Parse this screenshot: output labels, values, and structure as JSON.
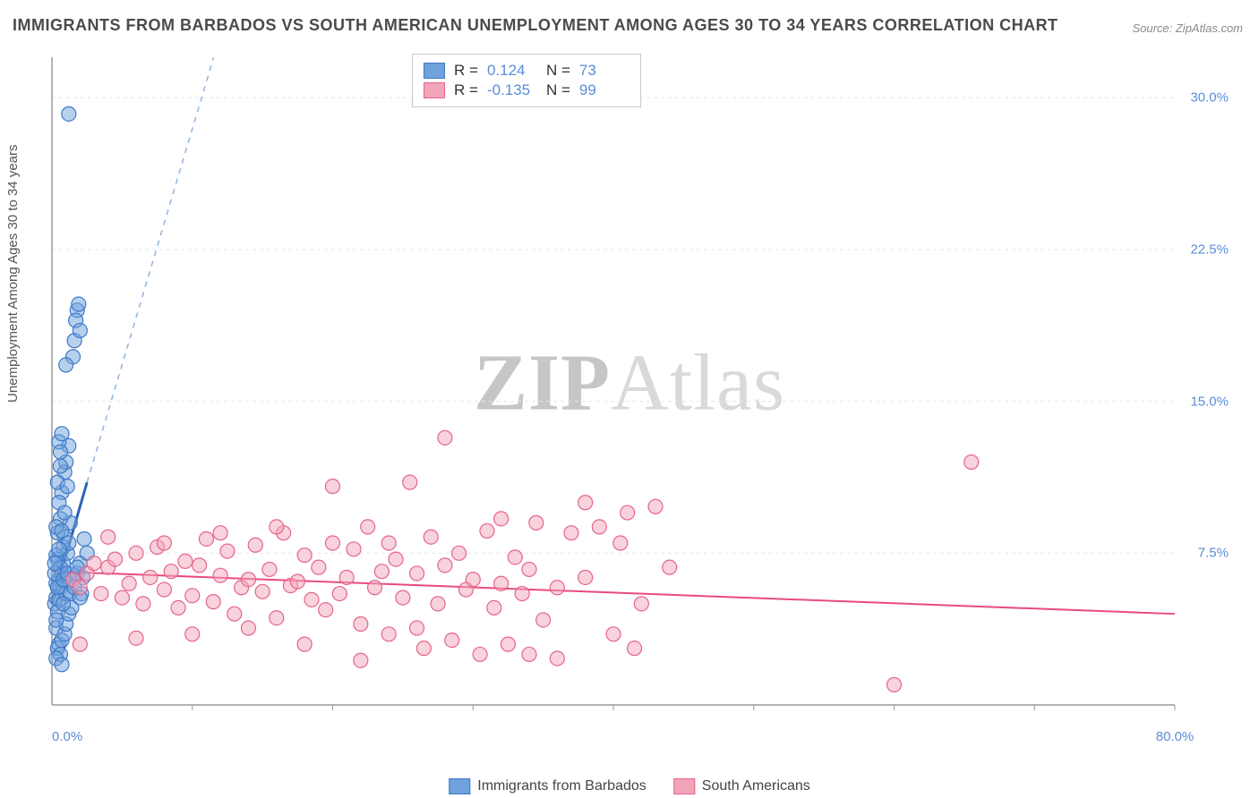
{
  "title": "IMMIGRANTS FROM BARBADOS VS SOUTH AMERICAN UNEMPLOYMENT AMONG AGES 30 TO 34 YEARS CORRELATION CHART",
  "source": "Source: ZipAtlas.com",
  "ylabel": "Unemployment Among Ages 30 to 34 years",
  "watermark_bold": "ZIP",
  "watermark_light": "Atlas",
  "chart": {
    "type": "scatter",
    "background_color": "#ffffff",
    "grid_color": "#e6e6e6",
    "axis_color": "#9a9a9a",
    "tick_label_color": "#5b8dd6",
    "xlim": [
      0,
      80
    ],
    "ylim": [
      0,
      32
    ],
    "yticks": [
      7.5,
      15.0,
      22.5,
      30.0
    ],
    "ytick_labels": [
      "7.5%",
      "15.0%",
      "22.5%",
      "30.0%"
    ],
    "xticks": [
      10,
      20,
      30,
      40,
      50,
      60,
      70,
      80
    ],
    "x_origin_label": "0.0%",
    "x_end_label": "80.0%",
    "marker_radius": 8,
    "marker_opacity": 0.5,
    "series": [
      {
        "name": "Immigrants from Barbados",
        "color": "#6fa1dd",
        "border_color": "#3d78c4",
        "R": "0.124",
        "N": "73",
        "trend": {
          "x1": 0,
          "y1": 5.0,
          "x2": 2.5,
          "y2": 11.0,
          "dash_x2": 30,
          "dash_y2": 75,
          "solid_color": "#2a62b8",
          "dash_color": "#8fb3e0",
          "width": 2
        },
        "points": [
          [
            0.2,
            5.0
          ],
          [
            0.3,
            5.3
          ],
          [
            0.4,
            4.6
          ],
          [
            0.5,
            6.2
          ],
          [
            0.6,
            5.8
          ],
          [
            0.7,
            6.5
          ],
          [
            0.8,
            7.0
          ],
          [
            0.3,
            6.0
          ],
          [
            0.4,
            7.2
          ],
          [
            0.5,
            5.2
          ],
          [
            0.6,
            6.8
          ],
          [
            0.8,
            7.8
          ],
          [
            0.9,
            8.3
          ],
          [
            1.0,
            6.0
          ],
          [
            1.1,
            7.5
          ],
          [
            1.2,
            8.0
          ],
          [
            1.3,
            9.0
          ],
          [
            1.0,
            5.5
          ],
          [
            0.2,
            6.5
          ],
          [
            0.3,
            7.4
          ],
          [
            0.4,
            8.5
          ],
          [
            0.6,
            9.2
          ],
          [
            0.7,
            10.5
          ],
          [
            0.9,
            11.5
          ],
          [
            1.0,
            12.0
          ],
          [
            1.2,
            12.8
          ],
          [
            0.3,
            3.8
          ],
          [
            0.5,
            3.0
          ],
          [
            0.4,
            2.8
          ],
          [
            0.6,
            2.5
          ],
          [
            0.7,
            3.2
          ],
          [
            0.9,
            3.5
          ],
          [
            1.0,
            4.0
          ],
          [
            1.2,
            4.5
          ],
          [
            0.5,
            13.0
          ],
          [
            0.7,
            13.4
          ],
          [
            0.6,
            12.5
          ],
          [
            0.3,
            4.2
          ],
          [
            0.4,
            5.8
          ],
          [
            0.8,
            6.2
          ],
          [
            1.1,
            6.5
          ],
          [
            1.3,
            5.5
          ],
          [
            1.5,
            6.2
          ],
          [
            1.6,
            5.8
          ],
          [
            1.8,
            6.5
          ],
          [
            2.0,
            7.0
          ],
          [
            2.2,
            6.3
          ],
          [
            0.5,
            10.0
          ],
          [
            1.8,
            19.5
          ],
          [
            1.9,
            19.8
          ],
          [
            1.7,
            19.0
          ],
          [
            1.6,
            18.0
          ],
          [
            1.5,
            17.2
          ],
          [
            2.0,
            18.5
          ],
          [
            1.0,
            16.8
          ],
          [
            1.2,
            29.2
          ],
          [
            2.5,
            7.5
          ],
          [
            2.3,
            8.2
          ],
          [
            2.1,
            5.5
          ],
          [
            1.4,
            4.8
          ],
          [
            0.9,
            9.5
          ],
          [
            0.4,
            11.0
          ],
          [
            0.6,
            11.8
          ],
          [
            1.1,
            10.8
          ],
          [
            0.3,
            8.8
          ],
          [
            0.5,
            7.7
          ],
          [
            0.7,
            8.6
          ],
          [
            0.2,
            7.0
          ],
          [
            0.8,
            5.0
          ],
          [
            0.3,
            2.3
          ],
          [
            0.7,
            2.0
          ],
          [
            1.8,
            6.8
          ],
          [
            2.0,
            5.3
          ]
        ]
      },
      {
        "name": "South Americans",
        "color": "#f2a5b9",
        "border_color": "#e6648a",
        "R": "-0.135",
        "N": "99",
        "trend": {
          "x1": 0,
          "y1": 6.6,
          "x2": 80,
          "y2": 4.5,
          "solid_color": "#e94b7d",
          "width": 2
        },
        "points": [
          [
            1.5,
            6.2
          ],
          [
            2.0,
            5.8
          ],
          [
            2.5,
            6.5
          ],
          [
            3.0,
            7.0
          ],
          [
            3.5,
            5.5
          ],
          [
            4.0,
            6.8
          ],
          [
            4.5,
            7.2
          ],
          [
            5.0,
            5.3
          ],
          [
            5.5,
            6.0
          ],
          [
            6.0,
            7.5
          ],
          [
            6.5,
            5.0
          ],
          [
            7.0,
            6.3
          ],
          [
            7.5,
            7.8
          ],
          [
            8.0,
            5.7
          ],
          [
            8.5,
            6.6
          ],
          [
            9.0,
            4.8
          ],
          [
            9.5,
            7.1
          ],
          [
            10.0,
            5.4
          ],
          [
            10.5,
            6.9
          ],
          [
            11.0,
            8.2
          ],
          [
            11.5,
            5.1
          ],
          [
            12.0,
            6.4
          ],
          [
            12.5,
            7.6
          ],
          [
            13.0,
            4.5
          ],
          [
            13.5,
            5.8
          ],
          [
            14.0,
            6.2
          ],
          [
            14.5,
            7.9
          ],
          [
            15.0,
            5.6
          ],
          [
            15.5,
            6.7
          ],
          [
            16.0,
            4.3
          ],
          [
            16.5,
            8.5
          ],
          [
            17.0,
            5.9
          ],
          [
            17.5,
            6.1
          ],
          [
            18.0,
            7.4
          ],
          [
            18.5,
            5.2
          ],
          [
            19.0,
            6.8
          ],
          [
            19.5,
            4.7
          ],
          [
            20.0,
            8.0
          ],
          [
            20.5,
            5.5
          ],
          [
            21.0,
            6.3
          ],
          [
            21.5,
            7.7
          ],
          [
            22.0,
            4.0
          ],
          [
            22.5,
            8.8
          ],
          [
            23.0,
            5.8
          ],
          [
            23.5,
            6.6
          ],
          [
            24.0,
            3.5
          ],
          [
            24.5,
            7.2
          ],
          [
            25.0,
            5.3
          ],
          [
            25.5,
            11.0
          ],
          [
            26.0,
            6.5
          ],
          [
            26.5,
            2.8
          ],
          [
            27.0,
            8.3
          ],
          [
            27.5,
            5.0
          ],
          [
            28.0,
            6.9
          ],
          [
            28.5,
            3.2
          ],
          [
            29.0,
            7.5
          ],
          [
            29.5,
            5.7
          ],
          [
            30.0,
            6.2
          ],
          [
            30.5,
            2.5
          ],
          [
            31.0,
            8.6
          ],
          [
            31.5,
            4.8
          ],
          [
            32.0,
            6.0
          ],
          [
            32.5,
            3.0
          ],
          [
            33.0,
            7.3
          ],
          [
            20.0,
            10.8
          ],
          [
            28.0,
            13.2
          ],
          [
            33.5,
            5.5
          ],
          [
            34.0,
            6.7
          ],
          [
            34.5,
            9.0
          ],
          [
            35.0,
            4.2
          ],
          [
            36.0,
            5.8
          ],
          [
            37.0,
            8.5
          ],
          [
            38.0,
            6.3
          ],
          [
            40.0,
            3.5
          ],
          [
            41.0,
            9.5
          ],
          [
            42.0,
            5.0
          ],
          [
            43.0,
            9.8
          ],
          [
            44.0,
            6.8
          ],
          [
            38.0,
            10.0
          ],
          [
            39.0,
            8.8
          ],
          [
            36.0,
            2.3
          ],
          [
            40.5,
            8.0
          ],
          [
            41.5,
            2.8
          ],
          [
            65.5,
            12.0
          ],
          [
            60.0,
            1.0
          ],
          [
            34.0,
            2.5
          ],
          [
            32.0,
            9.2
          ],
          [
            26.0,
            3.8
          ],
          [
            24.0,
            8.0
          ],
          [
            22.0,
            2.2
          ],
          [
            18.0,
            3.0
          ],
          [
            16.0,
            8.8
          ],
          [
            14.0,
            3.8
          ],
          [
            12.0,
            8.5
          ],
          [
            10.0,
            3.5
          ],
          [
            8.0,
            8.0
          ],
          [
            6.0,
            3.3
          ],
          [
            4.0,
            8.3
          ],
          [
            2.0,
            3.0
          ]
        ]
      }
    ]
  },
  "legend_top": {
    "r_label": "R  =",
    "n_label": "N  ="
  }
}
